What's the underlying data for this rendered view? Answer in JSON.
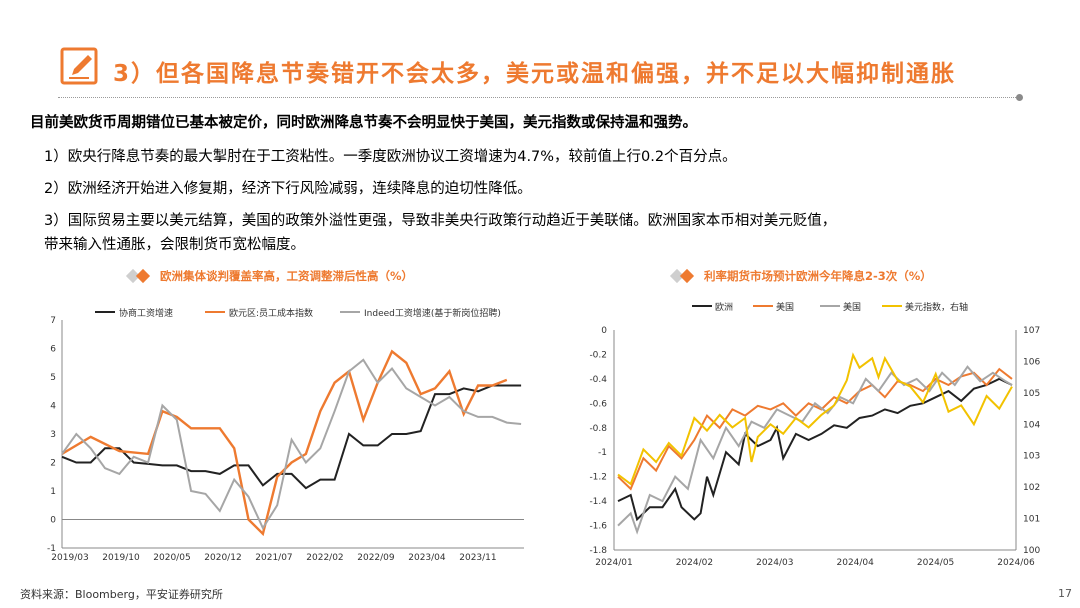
{
  "title": "3）但各国降息节奏错开不会太多，美元或温和偏强，并不足以大幅抑制通胀",
  "intro": "目前美欧货币周期错位已基本被定价，同时欧洲降息节奏不会明显快于美国，美元指数或保持温和强势。",
  "points": [
    "1）欧央行降息节奏的最大掣肘在于工资粘性。一季度欧洲协议工资增速为4.7%，较前值上行0.2个百分点。",
    "2）欧洲经济开始进入修复期，经济下行风险减弱，连续降息的迫切性降低。",
    "3）国际贸易主要以美元结算，美国的政策外溢性更强，导致非美央行政策行动趋近于美联储。欧洲国家本币相对美元贬值，",
    "带来输入性通胀，会限制货币宽松幅度。"
  ],
  "source": "资料来源：Bloomberg，平安证券研究所",
  "page_number": "17",
  "colors": {
    "accent": "#ee7a30",
    "black": "#222222",
    "gray": "#a6a6a6",
    "yellow": "#f2c200"
  },
  "icons": {
    "title": "pencil-note-icon",
    "chart_header": "diamond-icon"
  },
  "chart_data": [
    {
      "type": "line",
      "title": "欧洲集体谈判覆盖率高，工资调整滞后性高（%）",
      "x_ticks": [
        "2019/03",
        "2019/10",
        "2020/05",
        "2020/12",
        "2021/07",
        "2022/02",
        "2022/09",
        "2023/04",
        "2023/11"
      ],
      "y_ticks": [
        "7",
        "6",
        "5",
        "4",
        "3",
        "2",
        "1",
        "0",
        "-1"
      ],
      "ylim": [
        -1,
        7
      ],
      "legend_placement": "top",
      "series": [
        {
          "name": "协商工资增速",
          "color": "#222222",
          "points": [
            [
              0,
              2.2
            ],
            [
              1,
              2.0
            ],
            [
              2,
              2.0
            ],
            [
              3,
              2.5
            ],
            [
              4,
              2.5
            ],
            [
              5,
              2.0
            ],
            [
              6,
              1.95
            ],
            [
              7,
              1.9
            ],
            [
              8,
              1.9
            ],
            [
              9,
              1.7
            ],
            [
              10,
              1.7
            ],
            [
              11,
              1.6
            ],
            [
              12,
              1.9
            ],
            [
              13,
              1.9
            ],
            [
              14,
              1.2
            ],
            [
              15,
              1.6
            ],
            [
              16,
              1.6
            ],
            [
              17,
              1.1
            ],
            [
              18,
              1.4
            ],
            [
              19,
              1.4
            ],
            [
              20,
              3.0
            ],
            [
              21,
              2.6
            ],
            [
              22,
              2.6
            ],
            [
              23,
              3.0
            ],
            [
              24,
              3.0
            ],
            [
              25,
              3.1
            ],
            [
              26,
              4.4
            ],
            [
              27,
              4.4
            ],
            [
              28,
              4.6
            ],
            [
              29,
              4.5
            ],
            [
              30,
              4.7
            ],
            [
              31,
              4.7
            ],
            [
              32,
              4.7
            ]
          ]
        },
        {
          "name": "欧元区:员工成本指数",
          "color": "#ee7a30",
          "points": [
            [
              0,
              2.3
            ],
            [
              2,
              2.9
            ],
            [
              4,
              2.4
            ],
            [
              6,
              2.3
            ],
            [
              7,
              3.8
            ],
            [
              8,
              3.6
            ],
            [
              9,
              3.2
            ],
            [
              11,
              3.2
            ],
            [
              12,
              2.5
            ],
            [
              13,
              0
            ],
            [
              14,
              -0.5
            ],
            [
              15,
              1.5
            ],
            [
              16,
              2.0
            ],
            [
              17,
              2.3
            ],
            [
              18,
              3.8
            ],
            [
              19,
              4.8
            ],
            [
              20,
              5.2
            ],
            [
              21,
              3.5
            ],
            [
              22,
              4.8
            ],
            [
              23,
              5.9
            ],
            [
              24,
              5.5
            ],
            [
              25,
              4.4
            ],
            [
              26,
              4.6
            ],
            [
              27,
              5.2
            ],
            [
              28,
              3.7
            ],
            [
              29,
              4.7
            ],
            [
              30,
              4.7
            ],
            [
              31,
              4.9
            ]
          ]
        },
        {
          "name": "Indeed工资增速(基于新岗位招聘)",
          "color": "#a6a6a6",
          "points": [
            [
              0,
              2.3
            ],
            [
              1,
              3.0
            ],
            [
              2,
              2.5
            ],
            [
              3,
              1.8
            ],
            [
              4,
              1.6
            ],
            [
              5,
              2.2
            ],
            [
              6,
              2.0
            ],
            [
              7,
              4.0
            ],
            [
              8,
              3.5
            ],
            [
              9,
              1.0
            ],
            [
              10,
              0.9
            ],
            [
              11,
              0.3
            ],
            [
              12,
              1.4
            ],
            [
              13,
              0.8
            ],
            [
              14,
              -0.3
            ],
            [
              15,
              0.5
            ],
            [
              16,
              2.8
            ],
            [
              17,
              2.0
            ],
            [
              18,
              2.5
            ],
            [
              19,
              3.8
            ],
            [
              20,
              5.2
            ],
            [
              21,
              5.6
            ],
            [
              22,
              4.8
            ],
            [
              23,
              5.3
            ],
            [
              24,
              4.6
            ],
            [
              25,
              4.3
            ],
            [
              26,
              4.0
            ],
            [
              27,
              4.3
            ],
            [
              28,
              3.8
            ],
            [
              29,
              3.6
            ],
            [
              30,
              3.6
            ],
            [
              31,
              3.4
            ],
            [
              32,
              3.35
            ]
          ]
        }
      ]
    },
    {
      "type": "line",
      "title": "利率期货市场预计欧洲今年降息2-3次（%）",
      "x_ticks": [
        "2024/01",
        "2024/02",
        "2024/03",
        "2024/04",
        "2024/05",
        "2024/06"
      ],
      "y_left_ticks": [
        "0",
        "-0.2",
        "-0.4",
        "-0.6",
        "-0.8",
        "-1",
        "-1.2",
        "-1.4",
        "-1.6",
        "-1.8"
      ],
      "y_right_ticks": [
        "107",
        "106",
        "105",
        "104",
        "103",
        "102",
        "101",
        "100"
      ],
      "ylim_left": [
        -1.8,
        0
      ],
      "ylim_right": [
        100,
        107
      ],
      "legend_placement": "top",
      "series": [
        {
          "name": "欧洲",
          "color": "#222222",
          "axis": "left",
          "points": [
            [
              0,
              -1.4
            ],
            [
              2,
              -1.35
            ],
            [
              3,
              -1.55
            ],
            [
              5,
              -1.45
            ],
            [
              7,
              -1.45
            ],
            [
              9,
              -1.3
            ],
            [
              10,
              -1.45
            ],
            [
              12,
              -1.55
            ],
            [
              13,
              -1.5
            ],
            [
              14,
              -1.2
            ],
            [
              15,
              -1.35
            ],
            [
              17,
              -1.0
            ],
            [
              19,
              -1.1
            ],
            [
              20,
              -0.85
            ],
            [
              22,
              -0.95
            ],
            [
              24,
              -0.9
            ],
            [
              25,
              -0.8
            ],
            [
              26,
              -1.05
            ],
            [
              28,
              -0.85
            ],
            [
              30,
              -0.9
            ],
            [
              32,
              -0.85
            ],
            [
              34,
              -0.78
            ],
            [
              36,
              -0.8
            ],
            [
              38,
              -0.72
            ],
            [
              40,
              -0.7
            ],
            [
              42,
              -0.65
            ],
            [
              44,
              -0.68
            ],
            [
              46,
              -0.62
            ],
            [
              48,
              -0.6
            ],
            [
              50,
              -0.55
            ],
            [
              52,
              -0.5
            ],
            [
              54,
              -0.58
            ],
            [
              56,
              -0.48
            ],
            [
              58,
              -0.45
            ],
            [
              60,
              -0.4
            ],
            [
              62,
              -0.45
            ]
          ]
        },
        {
          "name": "美国",
          "color": "#ee7a30",
          "axis": "left",
          "points": [
            [
              0,
              -1.2
            ],
            [
              2,
              -1.3
            ],
            [
              4,
              -1.05
            ],
            [
              6,
              -1.15
            ],
            [
              8,
              -0.95
            ],
            [
              10,
              -1.05
            ],
            [
              12,
              -0.9
            ],
            [
              14,
              -0.7
            ],
            [
              16,
              -0.8
            ],
            [
              18,
              -0.65
            ],
            [
              20,
              -0.7
            ],
            [
              22,
              -0.62
            ],
            [
              24,
              -0.65
            ],
            [
              26,
              -0.6
            ],
            [
              28,
              -0.7
            ],
            [
              30,
              -0.6
            ],
            [
              32,
              -0.65
            ],
            [
              34,
              -0.55
            ],
            [
              36,
              -0.6
            ],
            [
              38,
              -0.5
            ],
            [
              40,
              -0.45
            ],
            [
              42,
              -0.55
            ],
            [
              44,
              -0.42
            ],
            [
              46,
              -0.45
            ],
            [
              48,
              -0.5
            ],
            [
              50,
              -0.4
            ],
            [
              52,
              -0.45
            ],
            [
              54,
              -0.38
            ],
            [
              56,
              -0.35
            ],
            [
              58,
              -0.45
            ],
            [
              60,
              -0.32
            ],
            [
              62,
              -0.4
            ]
          ]
        },
        {
          "name": "美国",
          "color": "#a6a6a6",
          "axis": "left",
          "points": [
            [
              0,
              -1.6
            ],
            [
              2,
              -1.5
            ],
            [
              3,
              -1.65
            ],
            [
              5,
              -1.35
            ],
            [
              7,
              -1.4
            ],
            [
              9,
              -1.2
            ],
            [
              11,
              -1.3
            ],
            [
              13,
              -0.9
            ],
            [
              15,
              -1.05
            ],
            [
              17,
              -0.8
            ],
            [
              19,
              -0.95
            ],
            [
              21,
              -0.75
            ],
            [
              23,
              -0.8
            ],
            [
              25,
              -0.65
            ],
            [
              27,
              -0.7
            ],
            [
              29,
              -0.75
            ],
            [
              31,
              -0.6
            ],
            [
              33,
              -0.68
            ],
            [
              35,
              -0.55
            ],
            [
              37,
              -0.6
            ],
            [
              39,
              -0.4
            ],
            [
              41,
              -0.5
            ],
            [
              43,
              -0.35
            ],
            [
              45,
              -0.45
            ],
            [
              47,
              -0.4
            ],
            [
              49,
              -0.5
            ],
            [
              51,
              -0.35
            ],
            [
              53,
              -0.45
            ],
            [
              55,
              -0.3
            ],
            [
              57,
              -0.42
            ],
            [
              59,
              -0.35
            ],
            [
              61,
              -0.42
            ],
            [
              62,
              -0.45
            ]
          ]
        },
        {
          "name": "美元指数，右轴",
          "color": "#f2c200",
          "axis": "right",
          "points": [
            [
              0,
              102.4
            ],
            [
              2,
              102.1
            ],
            [
              4,
              103.2
            ],
            [
              6,
              102.8
            ],
            [
              8,
              103.4
            ],
            [
              10,
              103.0
            ],
            [
              12,
              104.2
            ],
            [
              14,
              103.8
            ],
            [
              16,
              104.3
            ],
            [
              18,
              103.9
            ],
            [
              20,
              104.2
            ],
            [
              21,
              102.8
            ],
            [
              22,
              103.6
            ],
            [
              24,
              104.0
            ],
            [
              26,
              103.7
            ],
            [
              28,
              104.2
            ],
            [
              30,
              103.9
            ],
            [
              32,
              104.3
            ],
            [
              34,
              104.6
            ],
            [
              36,
              105.4
            ],
            [
              37,
              106.2
            ],
            [
              38,
              105.8
            ],
            [
              40,
              106.1
            ],
            [
              41,
              105.5
            ],
            [
              42,
              106.1
            ],
            [
              44,
              105.4
            ],
            [
              46,
              105.2
            ],
            [
              48,
              104.7
            ],
            [
              50,
              105.6
            ],
            [
              52,
              104.4
            ],
            [
              54,
              104.6
            ],
            [
              56,
              104.0
            ],
            [
              58,
              104.9
            ],
            [
              60,
              104.5
            ],
            [
              62,
              105.2
            ]
          ]
        }
      ]
    }
  ]
}
